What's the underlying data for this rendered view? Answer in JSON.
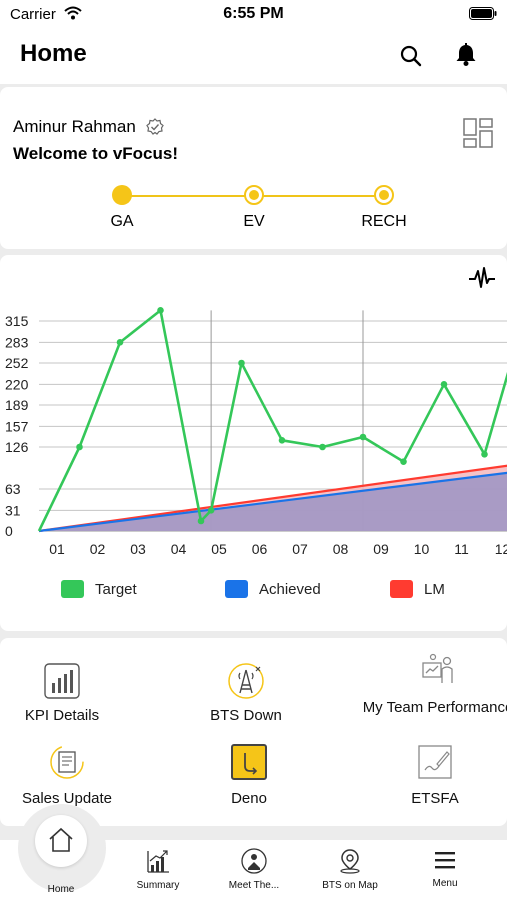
{
  "status_bar": {
    "carrier": "Carrier",
    "time": "6:55 PM"
  },
  "header": {
    "title": "Home",
    "icons": [
      "search-icon",
      "bell-icon"
    ]
  },
  "user_card": {
    "name": "Aminur Rahman",
    "welcome": "Welcome to vFocus!",
    "steps": [
      "GA",
      "EV",
      "RECH"
    ],
    "accent": "#f5c518"
  },
  "chart_data": {
    "type": "line",
    "x": [
      "01",
      "02",
      "03",
      "04",
      "05",
      "06",
      "07",
      "08",
      "09",
      "10",
      "11",
      "12"
    ],
    "yticks": [
      0,
      31,
      63,
      126,
      157,
      189,
      220,
      252,
      283,
      315
    ],
    "ylim": [
      0,
      315
    ],
    "series": [
      {
        "name": "Target",
        "color": "#34c759",
        "points": [
          [
            0.5,
            0
          ],
          [
            1.5,
            126
          ],
          [
            2.5,
            283
          ],
          [
            3.5,
            331
          ],
          [
            4.5,
            15
          ],
          [
            4.75,
            31
          ],
          [
            5.5,
            252
          ],
          [
            6.5,
            136
          ],
          [
            7.5,
            126
          ],
          [
            8.5,
            141
          ],
          [
            9.5,
            104
          ],
          [
            10.5,
            220
          ],
          [
            11.5,
            115
          ],
          [
            12.3,
            283
          ]
        ]
      },
      {
        "name": "Achieved",
        "color": "#1a73e8",
        "points": [
          [
            0.5,
            0
          ],
          [
            12.3,
            89
          ]
        ]
      },
      {
        "name": "LM",
        "color": "#ff3b30",
        "points": [
          [
            0.5,
            0
          ],
          [
            12.3,
            100
          ]
        ]
      }
    ],
    "legend": [
      "Target",
      "Achieved",
      "LM"
    ],
    "legend_position": "bottom",
    "grid": true
  },
  "actions": [
    {
      "label": "KPI Details",
      "icon": "bar-chart-icon"
    },
    {
      "label": "BTS Down",
      "icon": "tower-icon"
    },
    {
      "label": "My Team Performance",
      "icon": "team-presentation-icon"
    },
    {
      "label": "Sales Update",
      "icon": "sales-report-icon"
    },
    {
      "label": "Deno",
      "icon": "deno-icon"
    },
    {
      "label": "ETSFA",
      "icon": "sign-document-icon"
    }
  ],
  "tabbar": {
    "tabs": [
      {
        "label": "Home",
        "icon": "home-icon"
      },
      {
        "label": "Summary",
        "icon": "growth-chart-icon"
      },
      {
        "label": "Meet The...",
        "icon": "meeting-icon"
      },
      {
        "label": "BTS on Map",
        "icon": "map-pin-icon"
      },
      {
        "label": "Menu",
        "icon": "menu-icon"
      }
    ]
  }
}
